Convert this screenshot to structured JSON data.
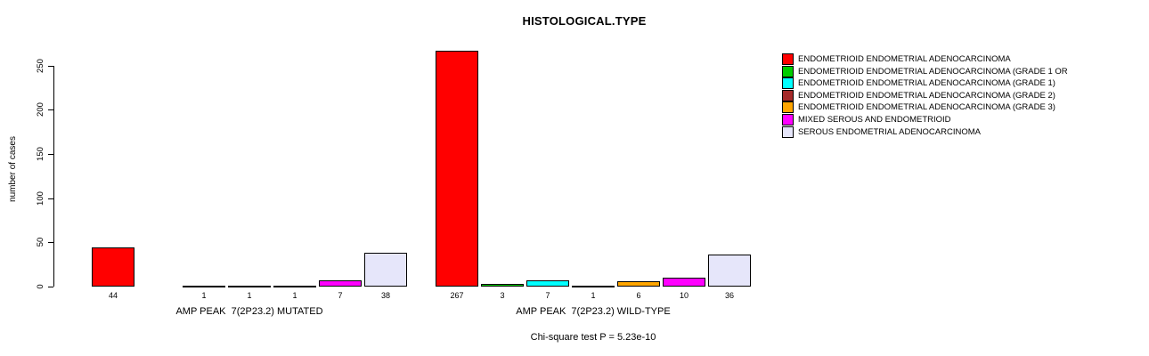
{
  "title": "HISTOLOGICAL.TYPE",
  "ylabel": "number of cases",
  "footnote": "Chi-square test P = 5.23e-10",
  "chart_data": {
    "type": "bar",
    "title": "HISTOLOGICAL.TYPE",
    "xlabel": "",
    "ylabel": "number of cases",
    "ylim": [
      0,
      270
    ],
    "yticks": [
      0,
      50,
      100,
      150,
      200,
      250
    ],
    "grid": false,
    "legend_position": "top-right",
    "categories": [
      "ENDOMETRIOID ENDOMETRIAL ADENOCARCINOMA",
      "ENDOMETRIOID ENDOMETRIAL ADENOCARCINOMA (GRADE 1 OR",
      "ENDOMETRIOID ENDOMETRIAL ADENOCARCINOMA (GRADE 1)",
      "ENDOMETRIOID ENDOMETRIAL ADENOCARCINOMA (GRADE 2)",
      "ENDOMETRIOID ENDOMETRIAL ADENOCARCINOMA (GRADE 3)",
      "MIXED SEROUS AND ENDOMETRIOID",
      "SEROUS ENDOMETRIAL ADENOCARCINOMA"
    ],
    "colors": [
      "#FF0000",
      "#00CD00",
      "#00FFFF",
      "#A52A2A",
      "#FFA500",
      "#FF00FF",
      "#E6E6FA"
    ],
    "groups": [
      {
        "label": "AMP PEAK  7(2P23.2) MUTATED",
        "values": [
          44,
          0,
          1,
          1,
          1,
          7,
          38
        ],
        "bar_labels": [
          "44",
          "",
          "1",
          "1",
          "1",
          "7",
          "38"
        ]
      },
      {
        "label": "AMP PEAK  7(2P23.2) WILD-TYPE",
        "values": [
          267,
          3,
          7,
          1,
          6,
          10,
          36
        ],
        "bar_labels": [
          "267",
          "3",
          "7",
          "1",
          "6",
          "10",
          "36"
        ]
      }
    ],
    "footnote": "Chi-square test P = 5.23e-10"
  }
}
